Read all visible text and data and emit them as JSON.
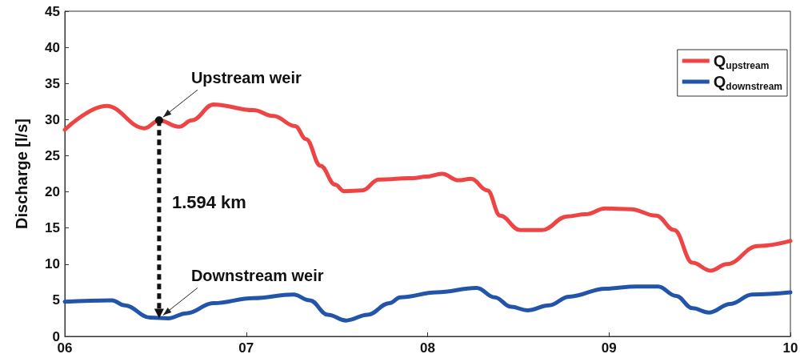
{
  "chart_data": {
    "type": "line",
    "ylabel": "Discharge [l/s]",
    "xlim": [
      6,
      10
    ],
    "xticks": [
      {
        "value": 6,
        "label": "06"
      },
      {
        "value": 7,
        "label": "07"
      },
      {
        "value": 8,
        "label": "08"
      },
      {
        "value": 9,
        "label": "09"
      },
      {
        "value": 10,
        "label": "10"
      }
    ],
    "ylim": [
      0,
      45
    ],
    "yticks": [
      0,
      5,
      10,
      15,
      20,
      25,
      30,
      35,
      40,
      45
    ],
    "grid": false,
    "legend": "top right",
    "line_style": "solid",
    "marker": "none",
    "series": [
      {
        "name": "Q$_{upstream}$",
        "color": "#ee4444",
        "x": [
          6.0,
          6.23,
          6.44,
          6.52,
          6.63,
          6.7,
          6.82,
          7.04,
          7.15,
          7.27,
          7.33,
          7.41,
          7.49,
          7.54,
          7.64,
          7.73,
          7.92,
          7.99,
          8.08,
          8.17,
          8.24,
          8.33,
          8.4,
          8.51,
          8.63,
          8.77,
          8.87,
          8.98,
          9.12,
          9.26,
          9.36,
          9.46,
          9.56,
          9.65,
          9.82,
          10.0
        ],
        "values": [
          28.6,
          31.9,
          28.8,
          29.9,
          29.0,
          29.9,
          32.1,
          31.3,
          30.5,
          29.1,
          27.3,
          23.6,
          21.0,
          20.1,
          20.2,
          21.7,
          21.9,
          22.1,
          22.5,
          21.6,
          21.8,
          20.2,
          16.7,
          14.7,
          14.7,
          16.6,
          16.9,
          17.7,
          17.6,
          16.7,
          14.7,
          10.2,
          9.1,
          10.0,
          12.5,
          13.2
        ]
      },
      {
        "name": "Q$_{downstream}$",
        "color": "#2255aa",
        "x": [
          6.0,
          6.26,
          6.33,
          6.47,
          6.57,
          6.67,
          6.82,
          7.04,
          7.26,
          7.35,
          7.45,
          7.55,
          7.67,
          7.79,
          7.85,
          8.05,
          8.27,
          8.37,
          8.46,
          8.55,
          8.67,
          8.78,
          8.98,
          9.15,
          9.27,
          9.37,
          9.46,
          9.55,
          9.67,
          9.79,
          10.0
        ],
        "values": [
          4.8,
          5.0,
          4.3,
          2.6,
          2.5,
          3.2,
          4.6,
          5.3,
          5.8,
          5.0,
          3.0,
          2.2,
          3.0,
          4.6,
          5.4,
          6.1,
          6.7,
          5.4,
          4.1,
          3.6,
          4.3,
          5.5,
          6.6,
          6.9,
          6.9,
          5.6,
          3.9,
          3.3,
          4.5,
          5.8,
          6.1
        ]
      }
    ],
    "annotations": [
      {
        "text": "Upstream weir",
        "x": 6.52,
        "y": 29.9
      },
      {
        "text": "Downstream weir",
        "x": 6.52,
        "y": 2.5
      },
      "1.594 km"
    ]
  }
}
